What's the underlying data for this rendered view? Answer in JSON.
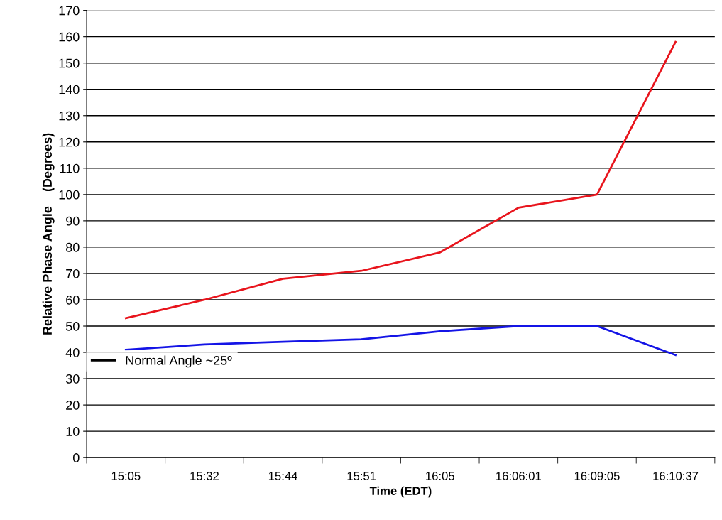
{
  "chart_data": {
    "type": "line",
    "xlabel": "Time (EDT)",
    "ylabel": "Relative Phase Angle    (Degrees)",
    "categories": [
      "15:05",
      "15:32",
      "15:44",
      "15:51",
      "16:05",
      "16:06:01",
      "16:09:05",
      "16:10:37"
    ],
    "series": [
      {
        "color": "#e8141c",
        "values": [
          53,
          60,
          68,
          71,
          78,
          95,
          100,
          158
        ]
      },
      {
        "color": "#1414e6",
        "values": [
          41,
          43,
          44,
          45,
          48,
          50,
          50,
          39
        ]
      },
      {
        "name": "Normal Angle ~25º",
        "color": "#000000",
        "values": [
          null,
          null,
          null,
          null,
          null,
          null,
          null,
          null
        ]
      }
    ],
    "ylim": [
      0,
      170
    ],
    "yticks": [
      0,
      10,
      20,
      30,
      40,
      50,
      60,
      70,
      80,
      90,
      100,
      110,
      120,
      130,
      140,
      150,
      160,
      170
    ],
    "grid": "y",
    "legend": "bottom left",
    "marker": "none",
    "line_style": "solid"
  }
}
